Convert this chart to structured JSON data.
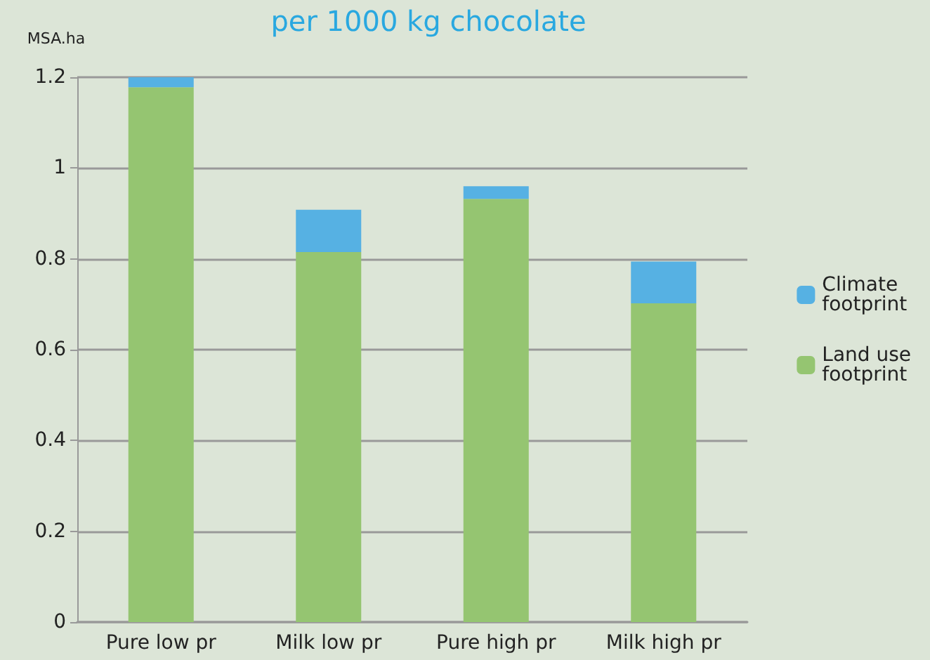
{
  "chart_data": {
    "type": "bar",
    "title": "per 1000 kg chocolate",
    "ylabel": "MSA.ha",
    "categories": [
      "Pure low pr",
      "Milk low pr",
      "Pure high pr",
      "Milk high pr"
    ],
    "series": [
      {
        "name": "Land use footprint",
        "color": "#95c571",
        "values": [
          1.178,
          0.815,
          0.932,
          0.702
        ]
      },
      {
        "name": "Climate footprint",
        "color": "#56b1e3",
        "values": [
          0.022,
          0.093,
          0.028,
          0.092
        ]
      }
    ],
    "stacked": true,
    "ylim": [
      0,
      1.2
    ],
    "yticks": [
      0,
      0.2,
      0.4,
      0.6,
      0.8,
      1,
      1.2
    ],
    "grid": "y",
    "legend": "right"
  }
}
